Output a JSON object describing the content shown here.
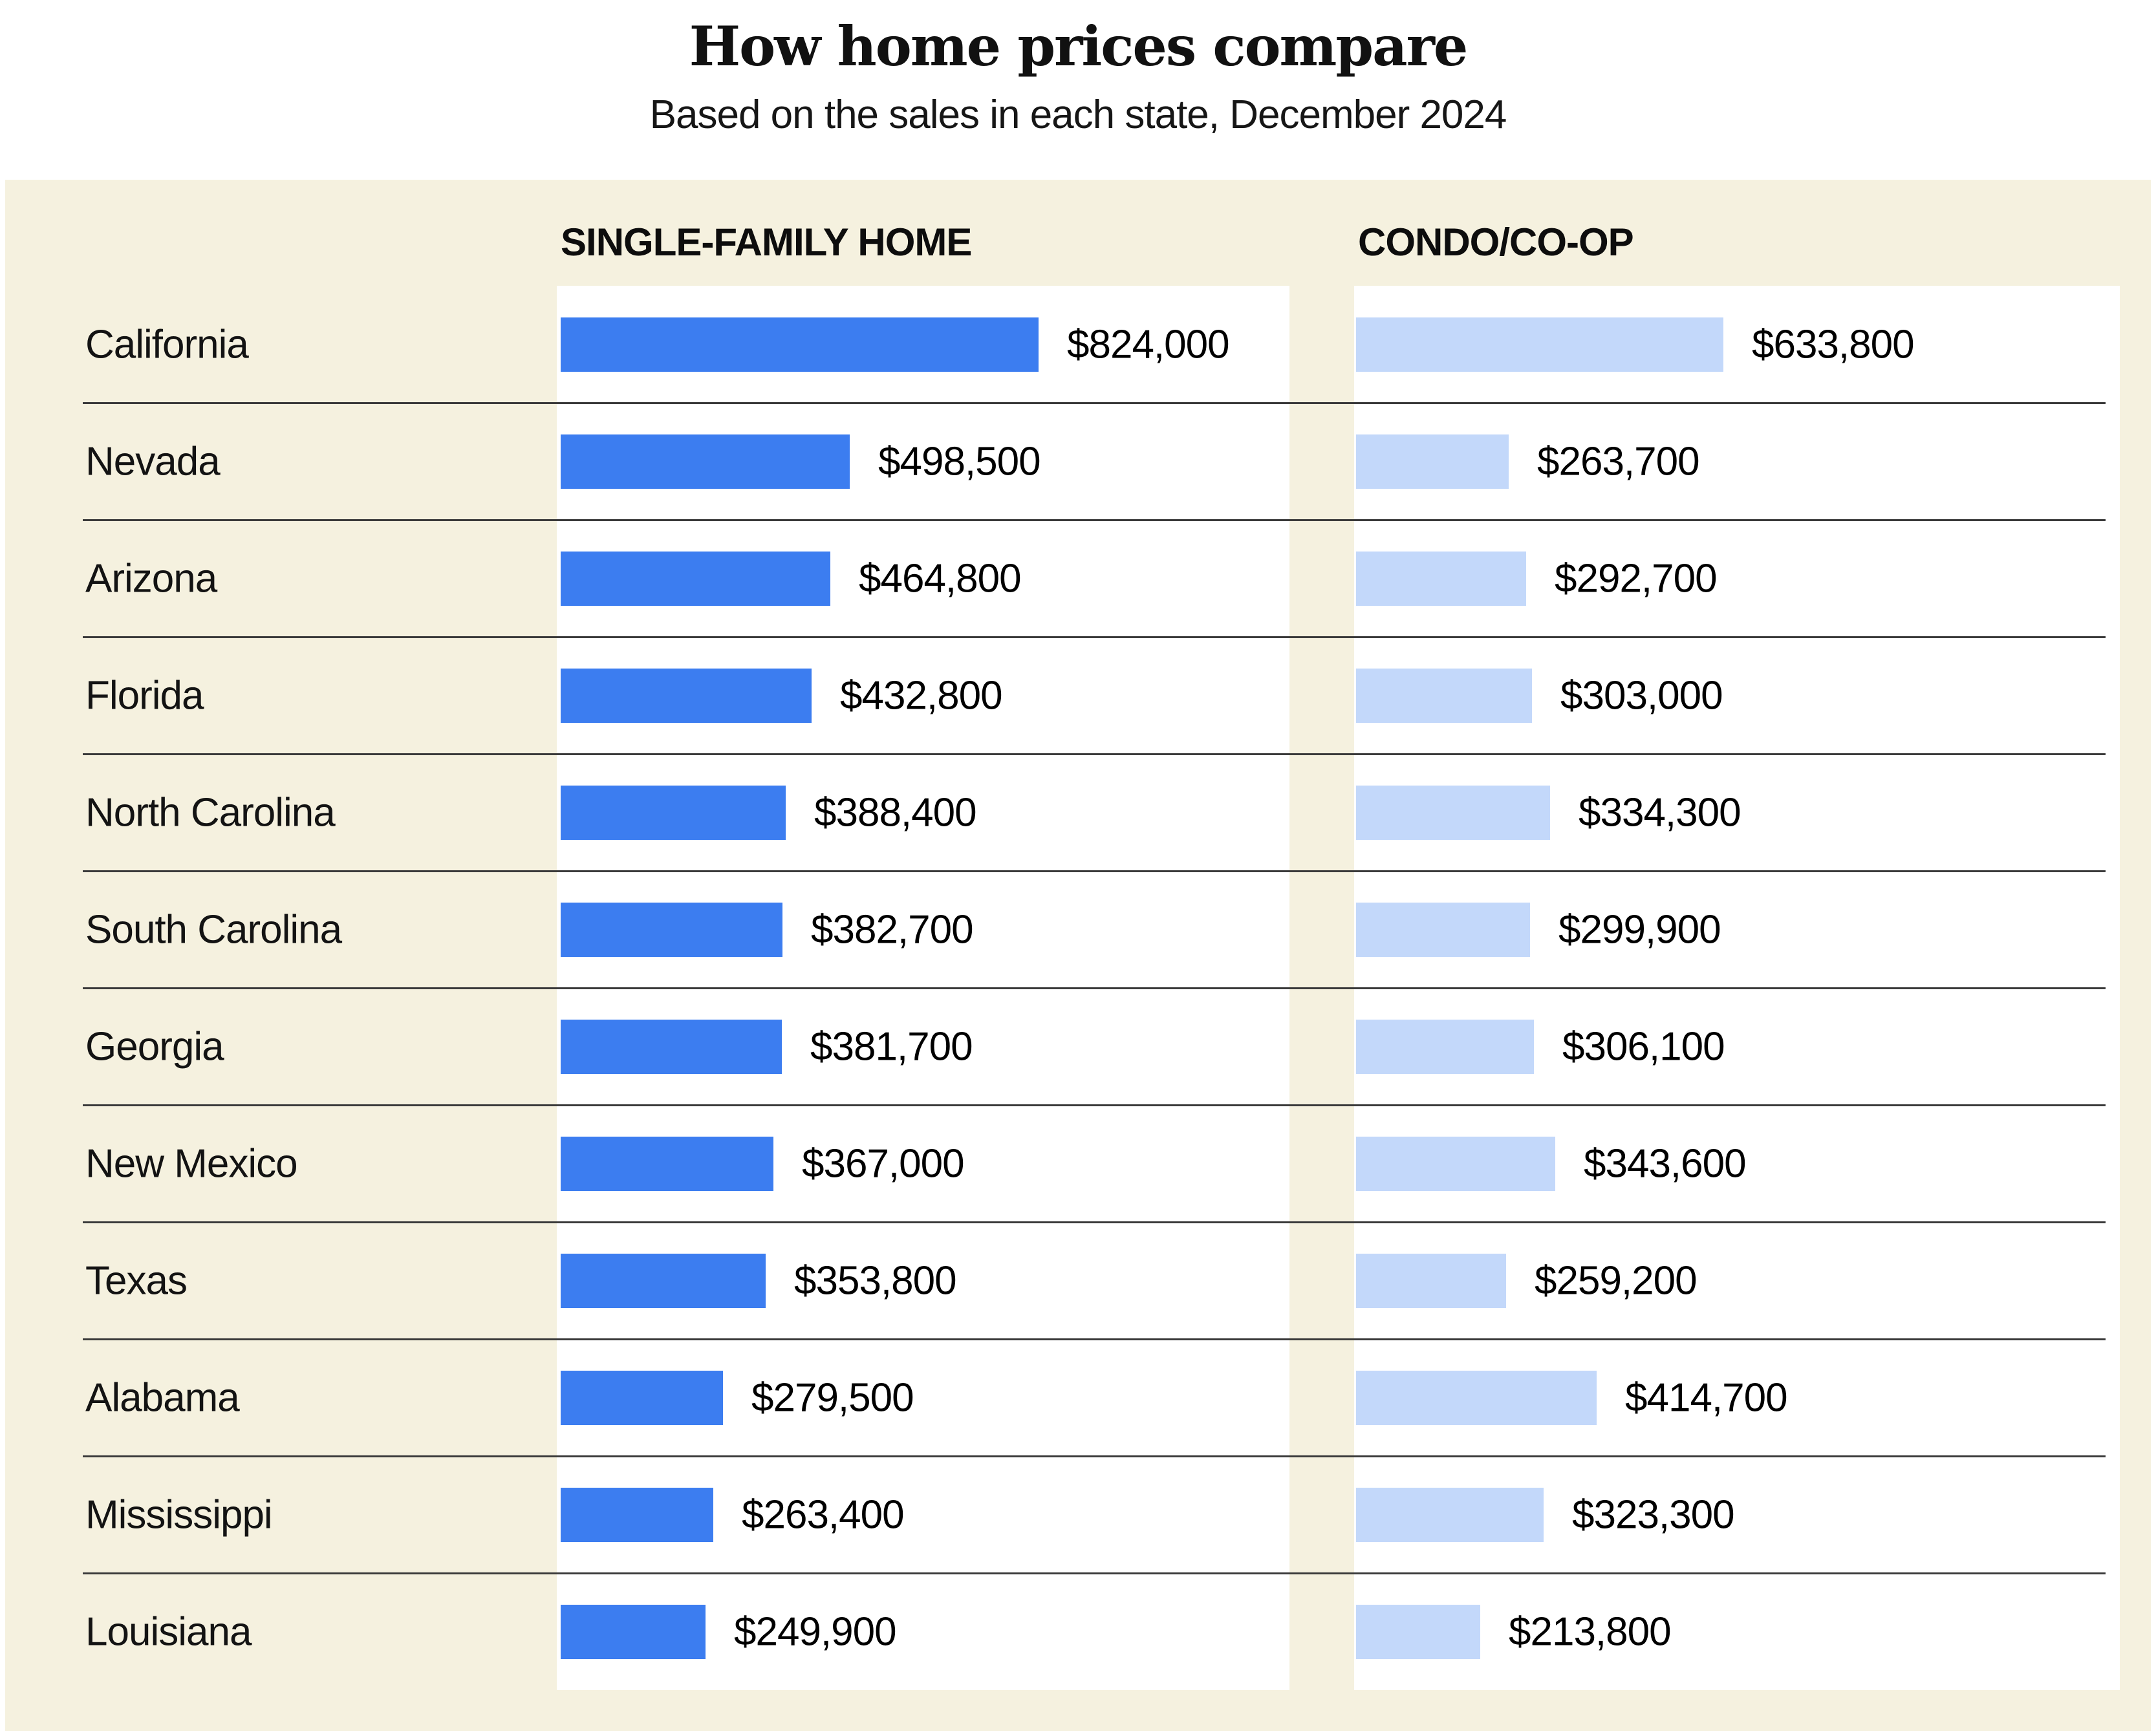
{
  "page": {
    "title": "How home prices compare",
    "subtitle": "Based on the sales in each state, December 2024"
  },
  "columns": {
    "single_family_header": "SINGLE-FAMILY HOME",
    "condo_header": "CONDO/CO-OP"
  },
  "chart_data": {
    "type": "bar",
    "orientation": "horizontal",
    "title": "How home prices compare",
    "subtitle": "Based on the sales in each state, December 2024",
    "categories": [
      "California",
      "Nevada",
      "Arizona",
      "Florida",
      "North Carolina",
      "South Carolina",
      "Georgia",
      "New Mexico",
      "Texas",
      "Alabama",
      "Mississippi",
      "Louisiana"
    ],
    "series": [
      {
        "name": "SINGLE-FAMILY HOME",
        "color": "#3C7DF0",
        "values": [
          824000,
          498500,
          464800,
          432800,
          388400,
          382700,
          381700,
          367000,
          353800,
          279500,
          263400,
          249900
        ],
        "labels": [
          "$824,000",
          "$498,500",
          "$464,800",
          "$432,800",
          "$388,400",
          "$382,700",
          "$381,700",
          "$367,000",
          "$353,800",
          "$279,500",
          "$263,400",
          "$249,900"
        ]
      },
      {
        "name": "CONDO/CO-OP",
        "color": "#C3D8FA",
        "values": [
          633800,
          263700,
          292700,
          303000,
          334300,
          299900,
          306100,
          343600,
          259200,
          414700,
          323300,
          213800
        ],
        "labels": [
          "$633,800",
          "$263,700",
          "$292,700",
          "$303,000",
          "$334,300",
          "$299,900",
          "$306,100",
          "$343,600",
          "$259,200",
          "$414,700",
          "$323,300",
          "$213,800"
        ]
      }
    ],
    "xlim": [
      0,
      824000
    ],
    "value_label_position": "right-of-bar",
    "grid": "horizontal-row-dividers",
    "legend_position": "column-headers-top"
  },
  "colors": {
    "page_background": "#FFFFFF",
    "cream_background": "#F5F1DF",
    "column_background": "#FFFFFF",
    "bar_single_family": "#3C7DF0",
    "bar_condo": "#C3D8FA",
    "row_divider": "#3A3A3A",
    "text": "#111111"
  }
}
